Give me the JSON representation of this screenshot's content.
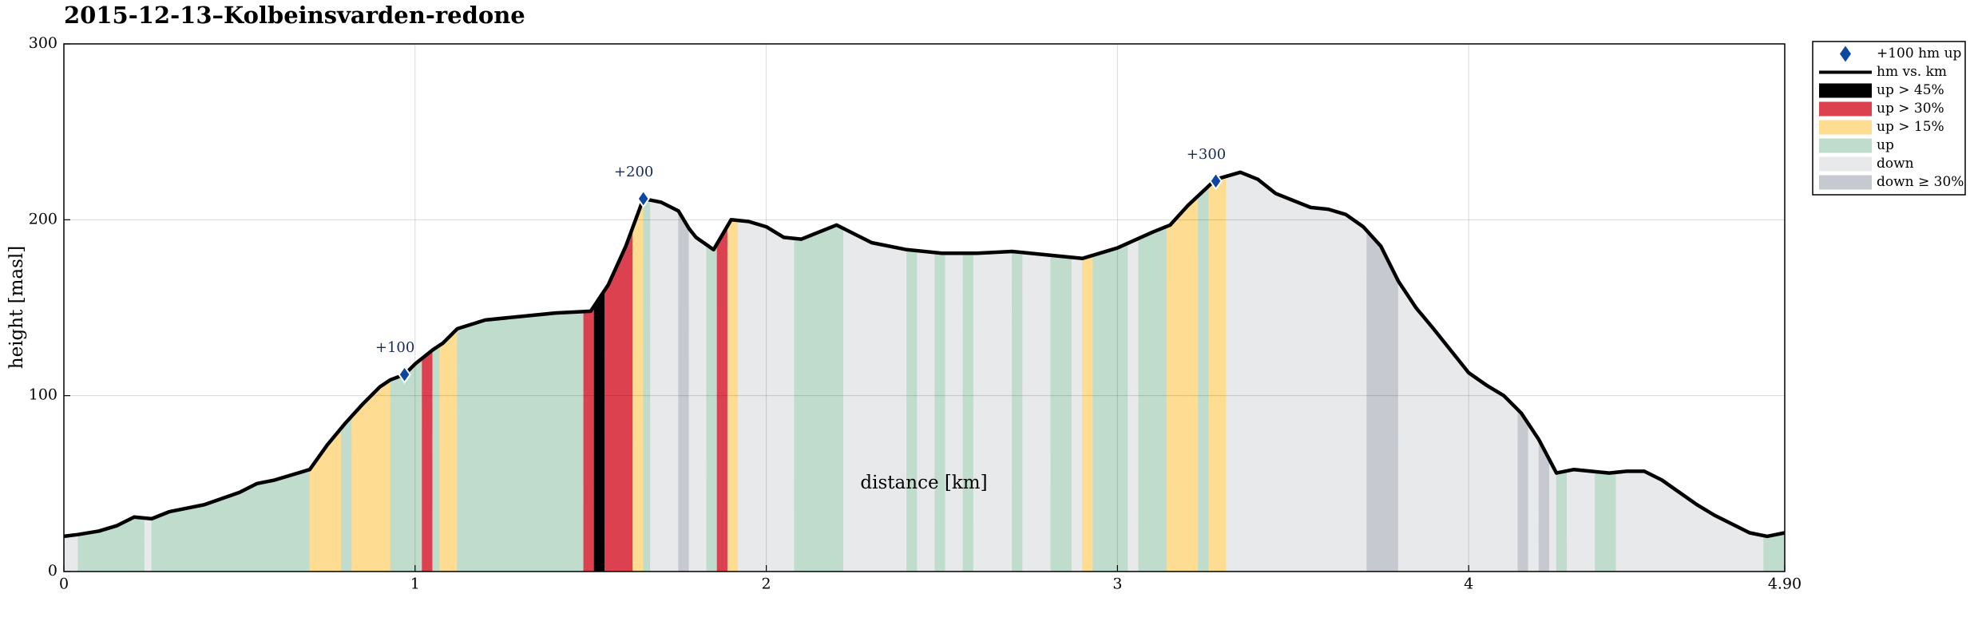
{
  "chart_data": {
    "type": "area",
    "title": "2015-12-13–Kolbeinsvarden-redone",
    "xlabel": "distance [km]",
    "ylabel": "height [masl]",
    "xlim": [
      0,
      4.9
    ],
    "ylim": [
      0,
      300
    ],
    "x_ticks": [
      0,
      1,
      2,
      3,
      4,
      4.9
    ],
    "x_tick_labels": [
      "0",
      "1",
      "2",
      "3",
      "4",
      "4.90"
    ],
    "y_ticks": [
      0,
      100,
      200,
      300
    ],
    "y_tick_labels": [
      "0",
      "100",
      "200",
      "300"
    ],
    "grid": true,
    "legend_position": "outside-top-right",
    "legend": [
      {
        "key": "marker",
        "label": "+100 hm up",
        "color": "#0d47a1"
      },
      {
        "key": "line",
        "label": "hm vs. km",
        "color": "#000000"
      },
      {
        "key": "up45",
        "label": "up > 45%",
        "color": "#000000"
      },
      {
        "key": "up30",
        "label": "up > 30%",
        "color": "#dc4150"
      },
      {
        "key": "up15",
        "label": "up > 15%",
        "color": "#fedd93"
      },
      {
        "key": "up",
        "label": "up",
        "color": "#c0dccd"
      },
      {
        "key": "down",
        "label": "down",
        "color": "#e8e9eb"
      },
      {
        "key": "down30",
        "label": "down ≥ 30%",
        "color": "#c7c9d0"
      }
    ],
    "profile": {
      "x": [
        0,
        0.04,
        0.1,
        0.15,
        0.2,
        0.25,
        0.3,
        0.4,
        0.5,
        0.55,
        0.6,
        0.7,
        0.75,
        0.8,
        0.85,
        0.9,
        0.93,
        0.97,
        1.0,
        1.05,
        1.08,
        1.12,
        1.2,
        1.3,
        1.4,
        1.5,
        1.55,
        1.6,
        1.65,
        1.7,
        1.75,
        1.78,
        1.8,
        1.85,
        1.9,
        1.95,
        2.0,
        2.05,
        2.1,
        2.2,
        2.3,
        2.4,
        2.5,
        2.6,
        2.7,
        2.8,
        2.9,
        3.0,
        3.1,
        3.15,
        3.2,
        3.28,
        3.35,
        3.4,
        3.45,
        3.5,
        3.55,
        3.6,
        3.65,
        3.7,
        3.75,
        3.8,
        3.85,
        3.9,
        4.0,
        4.05,
        4.1,
        4.15,
        4.2,
        4.25,
        4.3,
        4.4,
        4.45,
        4.5,
        4.55,
        4.6,
        4.65,
        4.7,
        4.8,
        4.85,
        4.9
      ],
      "y": [
        20,
        21,
        23,
        26,
        31,
        30,
        34,
        38,
        45,
        50,
        52,
        58,
        72,
        84,
        95,
        105,
        109,
        112,
        118,
        126,
        130,
        138,
        143,
        145,
        147,
        148,
        163,
        185,
        212,
        210,
        205,
        195,
        190,
        183,
        200,
        199,
        196,
        190,
        189,
        197,
        187,
        183,
        181,
        181,
        182,
        180,
        178,
        184,
        193,
        197,
        208,
        223,
        227,
        223,
        215,
        211,
        207,
        206,
        203,
        196,
        185,
        165,
        150,
        138,
        113,
        106,
        100,
        90,
        75,
        56,
        58,
        56,
        57,
        57,
        52,
        45,
        38,
        32,
        22,
        20,
        22
      ]
    },
    "bands": [
      {
        "x0": 0.0,
        "x1": 0.04,
        "type": "down"
      },
      {
        "x0": 0.04,
        "x1": 0.23,
        "type": "up"
      },
      {
        "x0": 0.23,
        "x1": 0.25,
        "type": "down"
      },
      {
        "x0": 0.25,
        "x1": 0.7,
        "type": "up"
      },
      {
        "x0": 0.7,
        "x1": 0.79,
        "type": "up15"
      },
      {
        "x0": 0.79,
        "x1": 0.82,
        "type": "up"
      },
      {
        "x0": 0.82,
        "x1": 0.93,
        "type": "up15"
      },
      {
        "x0": 0.93,
        "x1": 1.02,
        "type": "up"
      },
      {
        "x0": 1.02,
        "x1": 1.05,
        "type": "up30"
      },
      {
        "x0": 1.05,
        "x1": 1.07,
        "type": "up"
      },
      {
        "x0": 1.07,
        "x1": 1.12,
        "type": "up15"
      },
      {
        "x0": 1.12,
        "x1": 1.48,
        "type": "up"
      },
      {
        "x0": 1.48,
        "x1": 1.51,
        "type": "up30"
      },
      {
        "x0": 1.51,
        "x1": 1.54,
        "type": "up45"
      },
      {
        "x0": 1.54,
        "x1": 1.62,
        "type": "up30"
      },
      {
        "x0": 1.62,
        "x1": 1.65,
        "type": "up15"
      },
      {
        "x0": 1.65,
        "x1": 1.67,
        "type": "up"
      },
      {
        "x0": 1.67,
        "x1": 1.75,
        "type": "down"
      },
      {
        "x0": 1.75,
        "x1": 1.78,
        "type": "down30"
      },
      {
        "x0": 1.78,
        "x1": 1.83,
        "type": "down"
      },
      {
        "x0": 1.83,
        "x1": 1.86,
        "type": "up"
      },
      {
        "x0": 1.86,
        "x1": 1.89,
        "type": "up30"
      },
      {
        "x0": 1.89,
        "x1": 1.92,
        "type": "up15"
      },
      {
        "x0": 1.92,
        "x1": 2.08,
        "type": "down"
      },
      {
        "x0": 2.08,
        "x1": 2.22,
        "type": "up"
      },
      {
        "x0": 2.22,
        "x1": 2.4,
        "type": "down"
      },
      {
        "x0": 2.4,
        "x1": 2.43,
        "type": "up"
      },
      {
        "x0": 2.43,
        "x1": 2.48,
        "type": "down"
      },
      {
        "x0": 2.48,
        "x1": 2.51,
        "type": "up"
      },
      {
        "x0": 2.51,
        "x1": 2.56,
        "type": "down"
      },
      {
        "x0": 2.56,
        "x1": 2.59,
        "type": "up"
      },
      {
        "x0": 2.59,
        "x1": 2.7,
        "type": "down"
      },
      {
        "x0": 2.7,
        "x1": 2.73,
        "type": "up"
      },
      {
        "x0": 2.73,
        "x1": 2.81,
        "type": "down"
      },
      {
        "x0": 2.81,
        "x1": 2.87,
        "type": "up"
      },
      {
        "x0": 2.87,
        "x1": 2.9,
        "type": "down"
      },
      {
        "x0": 2.9,
        "x1": 2.93,
        "type": "up15"
      },
      {
        "x0": 2.93,
        "x1": 3.03,
        "type": "up"
      },
      {
        "x0": 3.03,
        "x1": 3.06,
        "type": "down"
      },
      {
        "x0": 3.06,
        "x1": 3.14,
        "type": "up"
      },
      {
        "x0": 3.14,
        "x1": 3.23,
        "type": "up15"
      },
      {
        "x0": 3.23,
        "x1": 3.26,
        "type": "up"
      },
      {
        "x0": 3.26,
        "x1": 3.31,
        "type": "up15"
      },
      {
        "x0": 3.31,
        "x1": 3.71,
        "type": "down"
      },
      {
        "x0": 3.71,
        "x1": 3.8,
        "type": "down30"
      },
      {
        "x0": 3.8,
        "x1": 4.14,
        "type": "down"
      },
      {
        "x0": 4.14,
        "x1": 4.17,
        "type": "down30"
      },
      {
        "x0": 4.17,
        "x1": 4.2,
        "type": "down"
      },
      {
        "x0": 4.2,
        "x1": 4.23,
        "type": "down30"
      },
      {
        "x0": 4.23,
        "x1": 4.25,
        "type": "down"
      },
      {
        "x0": 4.25,
        "x1": 4.28,
        "type": "up"
      },
      {
        "x0": 4.28,
        "x1": 4.36,
        "type": "down"
      },
      {
        "x0": 4.36,
        "x1": 4.42,
        "type": "up"
      },
      {
        "x0": 4.42,
        "x1": 4.84,
        "type": "down"
      },
      {
        "x0": 4.84,
        "x1": 4.91,
        "type": "up"
      },
      {
        "x0": 4.91,
        "x1": 4.9,
        "type": "down"
      }
    ],
    "markers": [
      {
        "x": 0.97,
        "y": 112,
        "label": "+100"
      },
      {
        "x": 1.65,
        "y": 212,
        "label": "+200"
      },
      {
        "x": 3.28,
        "y": 222,
        "label": "+300"
      }
    ]
  }
}
